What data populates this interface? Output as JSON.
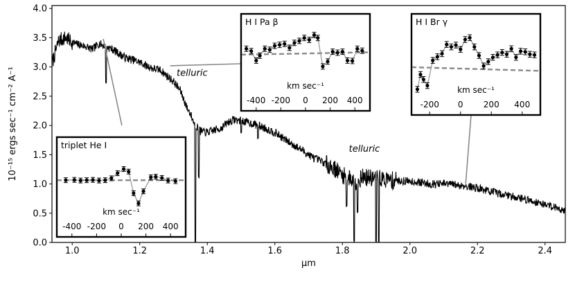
{
  "chart_data": [
    {
      "type": "line",
      "role": "main",
      "xlabel": "μm",
      "ylabel": "10⁻¹⁵ ergs sec⁻¹ cm⁻² A⁻¹",
      "xlim": [
        0.94,
        2.46
      ],
      "ylim": [
        0.0,
        4.05
      ],
      "xticks": [
        "1.0",
        "1.2",
        "1.4",
        "1.6",
        "1.8",
        "2.0",
        "2.2",
        "2.4"
      ],
      "yticks": [
        "0.0",
        "0.5",
        "1.0",
        "1.5",
        "2.0",
        "2.5",
        "3.0",
        "3.5",
        "4.0"
      ],
      "annotations": [
        {
          "text": "telluric",
          "x": 1.355,
          "y": 2.85
        },
        {
          "text": "telluric",
          "x": 1.865,
          "y": 1.55
        }
      ],
      "series": [
        {
          "x": [
            0.94,
            0.96,
            0.98,
            1.0,
            1.02,
            1.04,
            1.06,
            1.08,
            1.1,
            1.12,
            1.14,
            1.16,
            1.18,
            1.2,
            1.22,
            1.24,
            1.26,
            1.28,
            1.3,
            1.32,
            1.34,
            1.35,
            1.36,
            1.37,
            1.38,
            1.4,
            1.42,
            1.44,
            1.46,
            1.48,
            1.5,
            1.52,
            1.54,
            1.56,
            1.58,
            1.6,
            1.62,
            1.64,
            1.66,
            1.68,
            1.7,
            1.72,
            1.74,
            1.76,
            1.78,
            1.8,
            1.82,
            1.84,
            1.86,
            1.88,
            1.9,
            1.92,
            1.94,
            1.96,
            1.98,
            2.0,
            2.02,
            2.04,
            2.06,
            2.08,
            2.1,
            2.12,
            2.14,
            2.16,
            2.18,
            2.2,
            2.22,
            2.24,
            2.26,
            2.28,
            2.3,
            2.32,
            2.34,
            2.36,
            2.38,
            2.4,
            2.42,
            2.44,
            2.46
          ],
          "y": [
            3.05,
            3.45,
            3.5,
            3.42,
            3.38,
            3.35,
            3.3,
            3.4,
            3.35,
            3.3,
            3.22,
            3.15,
            3.12,
            3.08,
            3.02,
            2.97,
            2.95,
            2.85,
            2.75,
            2.6,
            2.3,
            2.2,
            2.05,
            1.98,
            1.9,
            1.88,
            1.92,
            1.95,
            2.05,
            2.1,
            2.08,
            2.05,
            2.02,
            1.98,
            1.93,
            1.88,
            1.8,
            1.72,
            1.65,
            1.58,
            1.5,
            1.43,
            1.38,
            1.32,
            1.25,
            1.15,
            1.1,
            1.05,
            1.12,
            1.1,
            1.1,
            1.08,
            1.07,
            1.06,
            1.05,
            1.05,
            1.03,
            1.02,
            1.0,
            1.0,
            1.0,
            1.0,
            0.98,
            0.97,
            0.95,
            0.93,
            0.9,
            0.87,
            0.84,
            0.82,
            0.79,
            0.77,
            0.74,
            0.71,
            0.68,
            0.65,
            0.62,
            0.58,
            0.55
          ]
        }
      ],
      "absorption_dips": [
        {
          "x": 1.1,
          "y": 2.7
        },
        {
          "x": 1.365,
          "y": 0.0
        },
        {
          "x": 1.375,
          "y": 1.1
        },
        {
          "x": 1.5,
          "y": 1.85
        },
        {
          "x": 1.55,
          "y": 1.75
        },
        {
          "x": 1.812,
          "y": 0.6
        },
        {
          "x": 1.835,
          "y": 0.0
        },
        {
          "x": 1.845,
          "y": 0.5
        },
        {
          "x": 1.9,
          "y": 0.0
        },
        {
          "x": 1.908,
          "y": 0.0
        },
        {
          "x": 1.95,
          "y": 0.9
        }
      ]
    },
    {
      "type": "scatter",
      "role": "inset",
      "label": "triplet He I",
      "xlabel": "km sec⁻¹",
      "xticks": [
        "-400",
        "-200",
        "0",
        "200",
        "400"
      ],
      "xlim": [
        -500,
        500
      ],
      "ylim": [
        0.2,
        1.9
      ],
      "points": {
        "x": [
          -450,
          -380,
          -330,
          -280,
          -230,
          -180,
          -130,
          -80,
          -30,
          20,
          60,
          100,
          140,
          180,
          240,
          280,
          330,
          380,
          440
        ],
        "y": [
          1.33,
          1.34,
          1.32,
          1.33,
          1.34,
          1.32,
          1.33,
          1.39,
          1.55,
          1.68,
          1.6,
          0.92,
          0.6,
          0.98,
          1.42,
          1.44,
          1.4,
          1.32,
          1.3
        ]
      },
      "continuum": 1.33
    },
    {
      "type": "scatter",
      "role": "inset",
      "label": "H I Pa β",
      "xlabel": "km sec⁻¹",
      "xticks": [
        "-400",
        "-200",
        "0",
        "200",
        "400"
      ],
      "xlim": [
        -500,
        500
      ],
      "ylim": [
        0.8,
        3.9
      ],
      "points": {
        "x": [
          -480,
          -440,
          -400,
          -370,
          -330,
          -290,
          -250,
          -210,
          -170,
          -130,
          -90,
          -50,
          -10,
          30,
          70,
          100,
          140,
          180,
          220,
          260,
          300,
          340,
          380,
          420,
          460
        ],
        "y": [
          2.9,
          2.78,
          2.3,
          2.55,
          2.9,
          2.85,
          3.05,
          3.1,
          3.15,
          2.95,
          3.2,
          3.3,
          3.45,
          3.35,
          3.6,
          3.45,
          2.0,
          2.25,
          2.75,
          2.7,
          2.75,
          2.3,
          2.28,
          2.9,
          2.8
        ]
      },
      "continuum_start": 2.6,
      "continuum_end": 2.72
    },
    {
      "type": "scatter",
      "role": "inset",
      "label": "H I Br γ",
      "xlabel": "km sec⁻¹",
      "xticks": [
        "-200",
        "0",
        "200",
        "400"
      ],
      "xlim": [
        -300,
        500
      ],
      "ylim": [
        -1.0,
        4.3
      ],
      "points": {
        "x": [
          -280,
          -260,
          -240,
          -215,
          -180,
          -150,
          -120,
          -90,
          -60,
          -30,
          0,
          30,
          60,
          90,
          120,
          150,
          180,
          210,
          240,
          270,
          300,
          330,
          360,
          390,
          420,
          450,
          480
        ],
        "y": [
          -0.6,
          0.6,
          0.2,
          -0.3,
          1.75,
          2.05,
          2.3,
          3.05,
          2.85,
          3.0,
          2.65,
          3.45,
          3.6,
          2.85,
          2.15,
          1.3,
          1.65,
          2.0,
          2.2,
          2.4,
          2.25,
          2.7,
          2.0,
          2.5,
          2.45,
          2.25,
          2.2
        ]
      },
      "continuum_start": 1.2,
      "continuum_end": 0.9
    }
  ]
}
